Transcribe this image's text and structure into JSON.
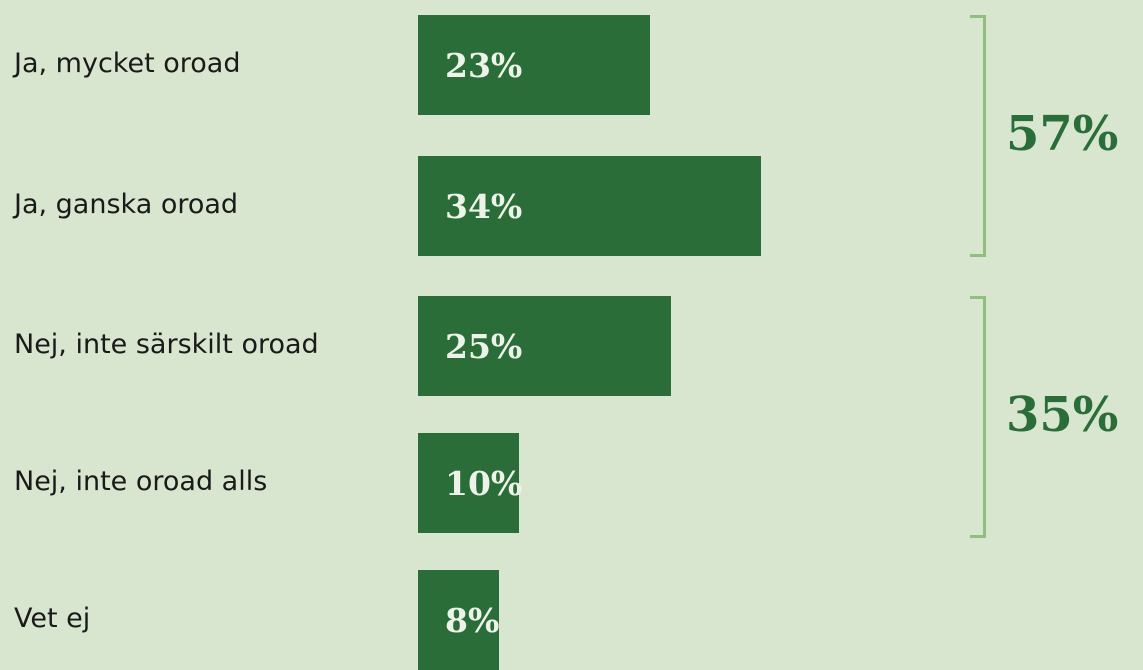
{
  "chart_data": {
    "type": "bar",
    "orientation": "horizontal",
    "categories": [
      "Ja, mycket oroad",
      "Ja, ganska oroad",
      "Nej, inte särskilt oroad",
      "Nej, inte oroad alls",
      "Vet ej"
    ],
    "values": [
      23,
      34,
      25,
      10,
      8
    ],
    "value_labels": [
      "23%",
      "34%",
      "25%",
      "10%",
      "8%"
    ],
    "xlim": [
      0,
      40
    ],
    "groups": [
      {
        "label": "57%",
        "value": 57,
        "categories": [
          0,
          1
        ]
      },
      {
        "label": "35%",
        "value": 35,
        "categories": [
          2,
          3
        ]
      }
    ],
    "title": "",
    "xlabel": "",
    "ylabel": "",
    "grid": false,
    "legend": "none",
    "colors": {
      "background": "#d8e6cf",
      "bar": "#2b6d39",
      "bar_label": "#eef3ea",
      "bracket": "#8fc07f",
      "group_total": "#2b6d39",
      "category_label": "#1a1a1a"
    }
  }
}
